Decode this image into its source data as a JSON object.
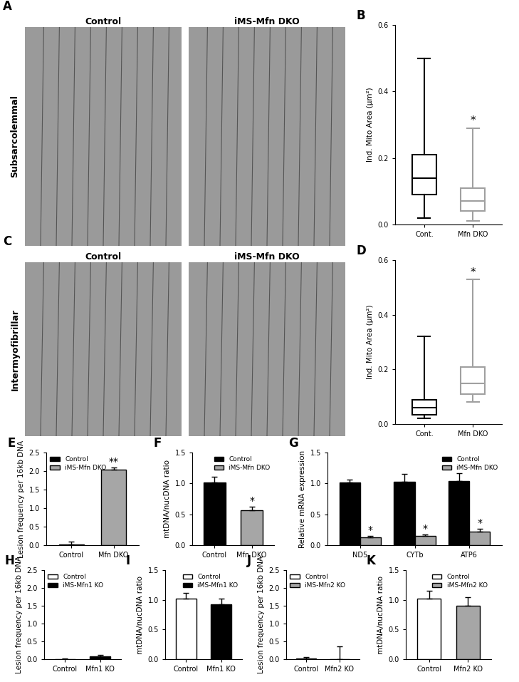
{
  "chart_data": [
    {
      "type": "image",
      "panel": "A",
      "row_label": "Subsarcolemmal",
      "titles": [
        "Control",
        "iMS-Mfn DKO"
      ]
    },
    {
      "type": "box",
      "panel": "B",
      "y_label": "Ind. Mito Area (μm²)",
      "categories": [
        "Cont.",
        "Mfn DKO"
      ],
      "boxes": [
        {
          "min": 0.02,
          "q1": 0.09,
          "median": 0.14,
          "q3": 0.21,
          "max": 0.5
        },
        {
          "min": 0.01,
          "q1": 0.04,
          "median": 0.07,
          "q3": 0.11,
          "max": 0.29
        }
      ],
      "colors": [
        "#000000",
        "#a0a0a0"
      ],
      "ylim": [
        0.0,
        0.6
      ],
      "yticks": [
        0.0,
        0.2,
        0.4,
        0.6
      ],
      "annotations": [
        {
          "text": "*",
          "category": "Mfn DKO"
        }
      ]
    },
    {
      "type": "image",
      "panel": "C",
      "row_label": "Intermyofibrillar",
      "titles": [
        "Control",
        "iMS-Mfn DKO"
      ]
    },
    {
      "type": "box",
      "panel": "D",
      "y_label": "Ind. Mito Area (μm²)",
      "categories": [
        "Cont.",
        "Mfn DKO"
      ],
      "boxes": [
        {
          "min": 0.02,
          "q1": 0.035,
          "median": 0.06,
          "q3": 0.09,
          "max": 0.32
        },
        {
          "min": 0.08,
          "q1": 0.11,
          "median": 0.15,
          "q3": 0.21,
          "max": 0.53
        }
      ],
      "colors": [
        "#000000",
        "#a0a0a0"
      ],
      "ylim": [
        0.0,
        0.6
      ],
      "yticks": [
        0.0,
        0.2,
        0.4,
        0.6
      ],
      "annotations": [
        {
          "text": "*",
          "category": "Mfn DKO"
        }
      ]
    },
    {
      "type": "bar",
      "panel": "E",
      "y_label": "Lesion frequency per 16kb DNA",
      "categories": [
        "Control",
        "Mfn DKO"
      ],
      "series": [
        {
          "name": "Control",
          "color": "#000000",
          "values": [
            0.02,
            null
          ],
          "errors": [
            0.08,
            null
          ]
        },
        {
          "name": "iMS-Mfn DKO",
          "color": "#a6a6a6",
          "values": [
            null,
            2.04
          ],
          "errors": [
            null,
            0.05
          ]
        }
      ],
      "ylim": [
        0.0,
        2.5
      ],
      "yticks": [
        0.0,
        0.5,
        1.0,
        1.5,
        2.0,
        2.5
      ],
      "legend": "upper left",
      "annotations": [
        {
          "text": "**",
          "category": "Mfn DKO",
          "series": "iMS-Mfn DKO"
        }
      ]
    },
    {
      "type": "bar",
      "panel": "F",
      "y_label": "mtDNA/nucDNA ratio",
      "categories": [
        "Control",
        "Mfn DKO"
      ],
      "series": [
        {
          "name": "Control",
          "color": "#000000",
          "values": [
            1.02,
            null
          ],
          "errors": [
            0.09,
            null
          ]
        },
        {
          "name": "iMS-Mfn DKO",
          "color": "#a6a6a6",
          "values": [
            null,
            0.56
          ],
          "errors": [
            null,
            0.06
          ]
        }
      ],
      "ylim": [
        0.0,
        1.5
      ],
      "yticks": [
        0.0,
        0.5,
        1.0,
        1.5
      ],
      "legend": "upper right",
      "annotations": [
        {
          "text": "*",
          "category": "Mfn DKO",
          "series": "iMS-Mfn DKO"
        }
      ]
    },
    {
      "type": "bar",
      "panel": "G",
      "y_label": "Relative mRNA expression",
      "categories": [
        "ND5",
        "CYTb",
        "ATP6"
      ],
      "series": [
        {
          "name": "Control",
          "color": "#000000",
          "values": [
            1.01,
            1.03,
            1.04
          ],
          "errors": [
            0.05,
            0.12,
            0.13
          ]
        },
        {
          "name": "iMS-Mfn DKO",
          "color": "#a6a6a6",
          "values": [
            0.13,
            0.15,
            0.22
          ],
          "errors": [
            0.02,
            0.02,
            0.04
          ]
        }
      ],
      "ylim": [
        0.0,
        1.5
      ],
      "yticks": [
        0.0,
        0.5,
        1.0,
        1.5
      ],
      "legend": "upper right",
      "annotations": [
        {
          "text": "*",
          "category": "ND5",
          "series": "iMS-Mfn DKO"
        },
        {
          "text": "*",
          "category": "CYTb",
          "series": "iMS-Mfn DKO"
        },
        {
          "text": "*",
          "category": "ATP6",
          "series": "iMS-Mfn DKO"
        }
      ]
    },
    {
      "type": "bar",
      "panel": "H",
      "y_label": "Lesion frequency per 16kb DNA",
      "categories": [
        "Control",
        "Mfn1 KO"
      ],
      "series": [
        {
          "name": "Control",
          "color": "#ffffff",
          "values": [
            0.01,
            null
          ],
          "errors": [
            0.01,
            null
          ]
        },
        {
          "name": "iMS-Mfn1 KO",
          "color": "#000000",
          "values": [
            null,
            0.08
          ],
          "errors": [
            null,
            0.05
          ]
        }
      ],
      "ylim": [
        0.0,
        2.5
      ],
      "yticks": [
        0.0,
        0.5,
        1.0,
        1.5,
        2.0,
        2.5
      ],
      "legend": "upper left"
    },
    {
      "type": "bar",
      "panel": "I",
      "y_label": "mtDNA/nucDNA ratio",
      "categories": [
        "Control",
        "Mfn1 KO"
      ],
      "series": [
        {
          "name": "Control",
          "color": "#ffffff",
          "values": [
            1.02,
            null
          ],
          "errors": [
            0.1,
            null
          ]
        },
        {
          "name": "iMS-Mfn1 KO",
          "color": "#000000",
          "values": [
            null,
            0.92
          ],
          "errors": [
            null,
            0.1
          ]
        }
      ],
      "ylim": [
        0.0,
        1.5
      ],
      "yticks": [
        0.0,
        0.5,
        1.0,
        1.5
      ],
      "legend": "upper right"
    },
    {
      "type": "bar",
      "panel": "J",
      "y_label": "Lesion frequency per 16kb DNA",
      "categories": [
        "Control",
        "Mfn2 KO"
      ],
      "series": [
        {
          "name": "Control",
          "color": "#ffffff",
          "values": [
            0.03,
            null
          ],
          "errors": [
            0.03,
            null
          ]
        },
        {
          "name": "iMS-Mfn2 KO",
          "color": "#a6a6a6",
          "values": [
            null,
            0.0
          ],
          "errors": [
            null,
            0.37
          ]
        }
      ],
      "ylim": [
        0.0,
        2.5
      ],
      "yticks": [
        0.0,
        0.5,
        1.0,
        1.5,
        2.0,
        2.5
      ],
      "legend": "upper left"
    },
    {
      "type": "bar",
      "panel": "K",
      "y_label": "mtDNA/nucDNA ratio",
      "categories": [
        "Control",
        "Mfn2 KO"
      ],
      "series": [
        {
          "name": "Control",
          "color": "#ffffff",
          "values": [
            1.02,
            null
          ],
          "errors": [
            0.13,
            null
          ]
        },
        {
          "name": "iMS-Mfn2 KO",
          "color": "#a6a6a6",
          "values": [
            null,
            0.9
          ],
          "errors": [
            null,
            0.14
          ]
        }
      ],
      "ylim": [
        0.0,
        1.5
      ],
      "yticks": [
        0.0,
        0.5,
        1.0,
        1.5
      ],
      "legend": "upper right"
    }
  ]
}
